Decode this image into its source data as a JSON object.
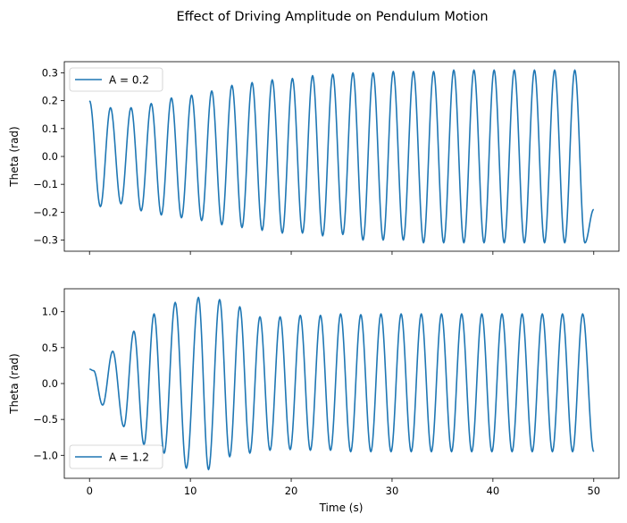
{
  "figure_title": "Effect of Driving Amplitude on Pendulum Motion",
  "chart_data": [
    {
      "type": "line",
      "title": "",
      "xlabel": "",
      "ylabel": "Theta (rad)",
      "legend_position": "top-left",
      "show_x_tick_labels": false,
      "xlim": [
        -2.5,
        52.5
      ],
      "ylim": [
        -0.34,
        0.34
      ],
      "x_ticks": [
        0,
        10,
        20,
        30,
        40,
        50
      ],
      "y_ticks": [
        -0.3,
        -0.2,
        -0.1,
        0.0,
        0.1,
        0.2,
        0.3
      ],
      "y_tick_labels": [
        "−0.3",
        "−0.2",
        "−0.1",
        "0.0",
        "0.1",
        "0.2",
        "0.3"
      ],
      "series": [
        {
          "name": "A = 0.2",
          "color": "#1f77b4",
          "points": [
            [
              0.0,
              0.2
            ],
            [
              1.08,
              -0.18
            ],
            [
              2.08,
              0.175
            ],
            [
              3.12,
              -0.17
            ],
            [
              4.12,
              0.175
            ],
            [
              5.12,
              -0.195
            ],
            [
              6.12,
              0.19
            ],
            [
              7.12,
              -0.21
            ],
            [
              8.12,
              0.21
            ],
            [
              9.12,
              -0.22
            ],
            [
              10.12,
              0.22
            ],
            [
              11.12,
              -0.23
            ],
            [
              12.12,
              0.235
            ],
            [
              13.12,
              -0.245
            ],
            [
              14.12,
              0.255
            ],
            [
              15.12,
              -0.255
            ],
            [
              16.12,
              0.265
            ],
            [
              17.12,
              -0.265
            ],
            [
              18.12,
              0.275
            ],
            [
              19.12,
              -0.275
            ],
            [
              20.12,
              0.28
            ],
            [
              21.12,
              -0.275
            ],
            [
              22.12,
              0.29
            ],
            [
              23.12,
              -0.285
            ],
            [
              24.12,
              0.295
            ],
            [
              25.12,
              -0.28
            ],
            [
              26.12,
              0.3
            ],
            [
              27.12,
              -0.3
            ],
            [
              28.12,
              0.3
            ],
            [
              29.12,
              -0.3
            ],
            [
              30.12,
              0.305
            ],
            [
              31.12,
              -0.3
            ],
            [
              32.12,
              0.305
            ],
            [
              33.12,
              -0.31
            ],
            [
              34.12,
              0.305
            ],
            [
              35.12,
              -0.31
            ],
            [
              36.12,
              0.31
            ],
            [
              37.12,
              -0.31
            ],
            [
              38.12,
              0.31
            ],
            [
              39.12,
              -0.31
            ],
            [
              40.12,
              0.31
            ],
            [
              41.12,
              -0.31
            ],
            [
              42.12,
              0.31
            ],
            [
              43.12,
              -0.31
            ],
            [
              44.12,
              0.31
            ],
            [
              45.12,
              -0.31
            ],
            [
              46.12,
              0.31
            ],
            [
              47.12,
              -0.31
            ],
            [
              48.12,
              0.31
            ],
            [
              49.12,
              -0.31
            ],
            [
              50.0,
              -0.19
            ]
          ]
        }
      ]
    },
    {
      "type": "line",
      "title": "",
      "xlabel": "Time (s)",
      "ylabel": "Theta (rad)",
      "legend_position": "bottom-left",
      "show_x_tick_labels": true,
      "xlim": [
        -2.5,
        52.5
      ],
      "ylim": [
        -1.32,
        1.32
      ],
      "x_ticks": [
        0,
        10,
        20,
        30,
        40,
        50
      ],
      "x_tick_labels": [
        "0",
        "10",
        "20",
        "30",
        "40",
        "50"
      ],
      "y_ticks": [
        -1.0,
        -0.5,
        0.0,
        0.5,
        1.0
      ],
      "y_tick_labels": [
        "−1.0",
        "−0.5",
        "0.0",
        "0.5",
        "1.0"
      ],
      "series": [
        {
          "name": "A = 1.2",
          "color": "#1f77b4",
          "points": [
            [
              0.0,
              0.2
            ],
            [
              0.4,
              0.18
            ],
            [
              1.3,
              -0.3
            ],
            [
              2.3,
              0.45
            ],
            [
              3.4,
              -0.6
            ],
            [
              4.4,
              0.73
            ],
            [
              5.4,
              -0.85
            ],
            [
              6.4,
              0.97
            ],
            [
              7.4,
              -0.97
            ],
            [
              8.5,
              1.13
            ],
            [
              9.6,
              -1.18
            ],
            [
              10.8,
              1.2
            ],
            [
              11.8,
              -1.2
            ],
            [
              12.9,
              1.17
            ],
            [
              13.9,
              -1.02
            ],
            [
              14.9,
              1.07
            ],
            [
              15.9,
              -0.97
            ],
            [
              16.9,
              0.93
            ],
            [
              17.9,
              -0.93
            ],
            [
              18.9,
              0.93
            ],
            [
              19.9,
              -0.92
            ],
            [
              20.9,
              0.95
            ],
            [
              21.9,
              -0.93
            ],
            [
              22.9,
              0.95
            ],
            [
              23.9,
              -0.93
            ],
            [
              24.9,
              0.97
            ],
            [
              25.9,
              -0.95
            ],
            [
              26.9,
              0.96
            ],
            [
              27.9,
              -0.95
            ],
            [
              28.9,
              0.97
            ],
            [
              29.9,
              -0.95
            ],
            [
              30.9,
              0.97
            ],
            [
              31.9,
              -0.95
            ],
            [
              32.9,
              0.97
            ],
            [
              33.9,
              -0.95
            ],
            [
              34.9,
              0.97
            ],
            [
              35.9,
              -0.95
            ],
            [
              36.9,
              0.97
            ],
            [
              37.9,
              -0.95
            ],
            [
              38.9,
              0.97
            ],
            [
              39.9,
              -0.95
            ],
            [
              40.9,
              0.97
            ],
            [
              41.9,
              -0.95
            ],
            [
              42.9,
              0.97
            ],
            [
              43.9,
              -0.95
            ],
            [
              44.9,
              0.97
            ],
            [
              45.9,
              -0.95
            ],
            [
              46.9,
              0.97
            ],
            [
              47.9,
              -0.95
            ],
            [
              48.9,
              0.97
            ],
            [
              50.0,
              -0.95
            ]
          ]
        }
      ]
    }
  ]
}
